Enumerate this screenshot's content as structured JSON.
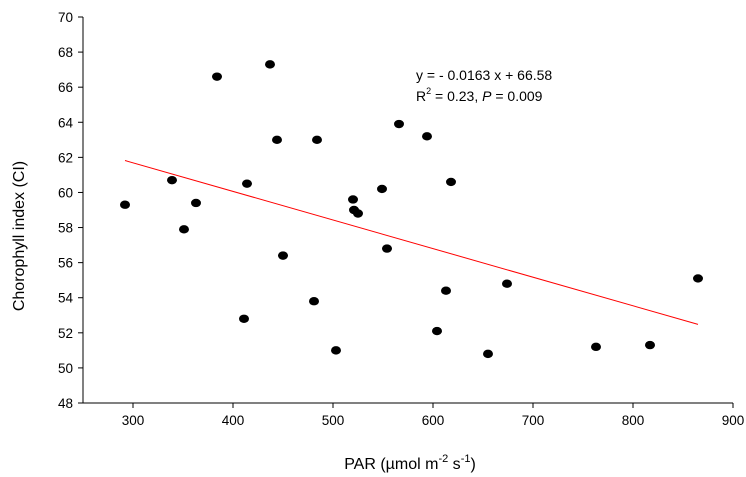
{
  "chart_data": {
    "type": "scatter",
    "ylabel": "Chorophyll index (CI)",
    "xlabel": {
      "base": "PAR (µmol m",
      "sup1": "-2",
      "mid": " s",
      "sup2": "-1",
      "end": ")"
    },
    "xlim": [
      250,
      900
    ],
    "ylim": [
      48,
      70
    ],
    "xticks": [
      "300",
      "400",
      "500",
      "600",
      "700",
      "800",
      "900"
    ],
    "yticks": [
      "48",
      "50",
      "52",
      "54",
      "56",
      "58",
      "60",
      "62",
      "64",
      "66",
      "68",
      "70"
    ],
    "points": [
      {
        "x": 292,
        "y": 59.3
      },
      {
        "x": 339,
        "y": 60.7
      },
      {
        "x": 351,
        "y": 57.9
      },
      {
        "x": 363,
        "y": 59.4
      },
      {
        "x": 384,
        "y": 66.6
      },
      {
        "x": 411,
        "y": 52.8
      },
      {
        "x": 414,
        "y": 60.5
      },
      {
        "x": 437,
        "y": 67.3
      },
      {
        "x": 444,
        "y": 63.0
      },
      {
        "x": 450,
        "y": 56.4
      },
      {
        "x": 481,
        "y": 53.8
      },
      {
        "x": 484,
        "y": 63.0
      },
      {
        "x": 503,
        "y": 51.0
      },
      {
        "x": 520,
        "y": 59.6
      },
      {
        "x": 521,
        "y": 59.0
      },
      {
        "x": 525,
        "y": 58.8
      },
      {
        "x": 549,
        "y": 60.2
      },
      {
        "x": 554,
        "y": 56.8
      },
      {
        "x": 566,
        "y": 63.9
      },
      {
        "x": 594,
        "y": 63.2
      },
      {
        "x": 604,
        "y": 52.1
      },
      {
        "x": 613,
        "y": 54.4
      },
      {
        "x": 618,
        "y": 60.6
      },
      {
        "x": 655,
        "y": 50.8
      },
      {
        "x": 674,
        "y": 54.8
      },
      {
        "x": 763,
        "y": 51.2
      },
      {
        "x": 817,
        "y": 51.3
      },
      {
        "x": 865,
        "y": 55.1
      }
    ],
    "trendline": {
      "slope": -0.0163,
      "intercept": 66.58,
      "x_range": [
        292,
        865
      ],
      "color": "#ff0000"
    },
    "point_color": "#000000",
    "grid": false,
    "annotation": {
      "line1": "y = - 0.0163 x + 66.58",
      "r_label": "R",
      "r_sup": "2",
      "r_value": " =  0.23, ",
      "p_label": "P",
      "p_value": " =  0.009"
    }
  }
}
